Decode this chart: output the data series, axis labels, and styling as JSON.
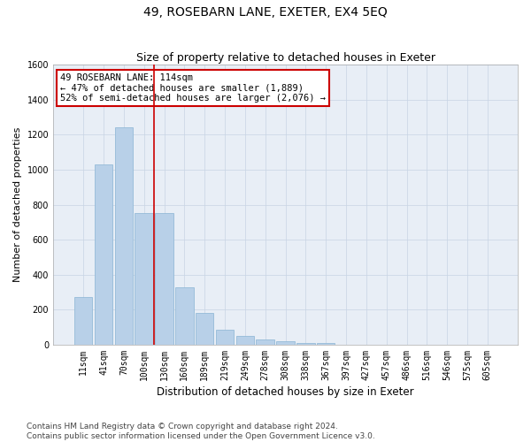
{
  "title": "49, ROSEBARN LANE, EXETER, EX4 5EQ",
  "subtitle": "Size of property relative to detached houses in Exeter",
  "xlabel": "Distribution of detached houses by size in Exeter",
  "ylabel": "Number of detached properties",
  "categories": [
    "11sqm",
    "41sqm",
    "70sqm",
    "100sqm",
    "130sqm",
    "160sqm",
    "189sqm",
    "219sqm",
    "249sqm",
    "278sqm",
    "308sqm",
    "338sqm",
    "367sqm",
    "397sqm",
    "427sqm",
    "457sqm",
    "486sqm",
    "516sqm",
    "546sqm",
    "575sqm",
    "605sqm"
  ],
  "values": [
    270,
    1030,
    1240,
    750,
    750,
    330,
    180,
    85,
    50,
    30,
    20,
    10,
    10,
    0,
    0,
    0,
    0,
    0,
    0,
    0,
    0
  ],
  "bar_color": "#b8d0e8",
  "bar_edge_color": "#8ab4d4",
  "vline_x": 3.5,
  "vline_color": "#cc0000",
  "annotation_line1": "49 ROSEBARN LANE: 114sqm",
  "annotation_line2": "← 47% of detached houses are smaller (1,889)",
  "annotation_line3": "52% of semi-detached houses are larger (2,076) →",
  "annotation_box_color": "#ffffff",
  "annotation_box_edge_color": "#cc0000",
  "ylim": [
    0,
    1600
  ],
  "yticks": [
    0,
    200,
    400,
    600,
    800,
    1000,
    1200,
    1400,
    1600
  ],
  "grid_color": "#c8d4e4",
  "bg_color": "#e8eef6",
  "footer": "Contains HM Land Registry data © Crown copyright and database right 2024.\nContains public sector information licensed under the Open Government Licence v3.0.",
  "title_fontsize": 10,
  "subtitle_fontsize": 9,
  "xlabel_fontsize": 8.5,
  "ylabel_fontsize": 8,
  "tick_fontsize": 7,
  "footer_fontsize": 6.5,
  "annot_fontsize": 7.5
}
